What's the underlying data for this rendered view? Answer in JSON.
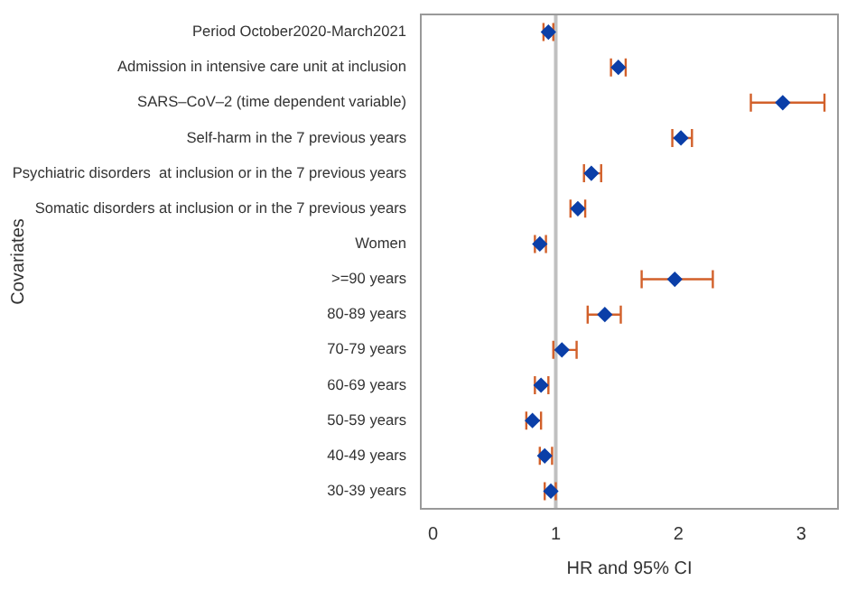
{
  "chart_data": {
    "type": "scatter",
    "orientation": "horizontal",
    "xlabel": "HR and 95% CI",
    "ylabel": "Covariates",
    "categories": [
      "Period October2020-March2021",
      "Admission in intensive care unit at inclusion",
      "SARS–CoV–2 (time dependent variable)",
      "Self-harm in the 7 previous years",
      "Psychiatric disorders  at inclusion or in the 7 previous years",
      "Somatic disorders at inclusion or in the 7 previous years",
      "Women",
      ">=90 years",
      "80-89 years",
      "70-79 years",
      "60-69 years",
      "50-59 years",
      "40-49 years",
      "30-39 years"
    ],
    "series": [
      {
        "color": "#0b3fa8",
        "values": [
          0.94,
          1.51,
          2.85,
          2.02,
          1.29,
          1.18,
          0.87,
          1.97,
          1.4,
          1.05,
          0.88,
          0.81,
          0.91,
          0.96
        ],
        "errors": [
          [
            0.9,
            0.98
          ],
          [
            1.45,
            1.57
          ],
          [
            2.59,
            3.19
          ],
          [
            1.95,
            2.11
          ],
          [
            1.23,
            1.37
          ],
          [
            1.12,
            1.24
          ],
          [
            0.83,
            0.92
          ],
          [
            1.7,
            2.28
          ],
          [
            1.26,
            1.53
          ],
          [
            0.98,
            1.17
          ],
          [
            0.83,
            0.94
          ],
          [
            0.76,
            0.88
          ],
          [
            0.87,
            0.97
          ],
          [
            0.91,
            1.0
          ]
        ]
      }
    ],
    "xlim": [
      -0.1,
      3.3
    ],
    "xticks": [
      0,
      1,
      2,
      3
    ],
    "marker": "diamond",
    "grid": false,
    "legend": false,
    "ref_lines": [
      {
        "axis": "x",
        "value": 1,
        "color": "#c0c0c0"
      }
    ]
  }
}
